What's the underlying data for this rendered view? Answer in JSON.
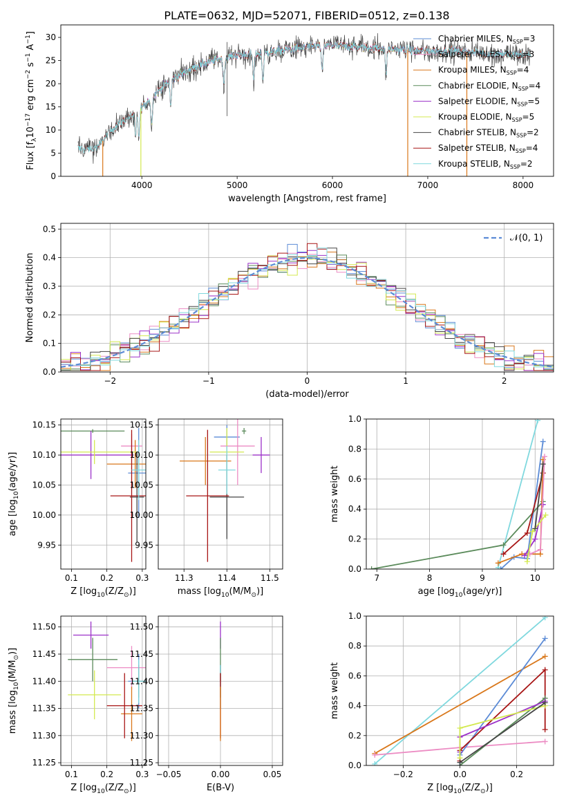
{
  "title": "PLATE=0632, MJD=52071, FIBERID=0512, z=0.138",
  "colors": {
    "chabrier_miles": "#5b8bd6",
    "salpeter_miles": "#ec8bc3",
    "kroupa_miles": "#d9771a",
    "chabrier_elodie": "#5a8a5a",
    "salpeter_elodie": "#9b30c8",
    "kroupa_elodie": "#d3e94f",
    "chabrier_stelib": "#444444",
    "salpeter_stelib": "#a71414",
    "kroupa_stelib": "#7fd8de"
  },
  "legend": [
    {
      "key": "chabrier_miles",
      "text": "Chabrier MILES, N",
      "sub": "SSP",
      "tail": "=3"
    },
    {
      "key": "salpeter_miles",
      "text": "Salpeter MILES, N",
      "sub": "SSP",
      "tail": "=3"
    },
    {
      "key": "kroupa_miles",
      "text": "Kroupa MILES, N",
      "sub": "SSP",
      "tail": "=4"
    },
    {
      "key": "chabrier_elodie",
      "text": "Chabrier ELODIE, N",
      "sub": "SSP",
      "tail": "=4"
    },
    {
      "key": "salpeter_elodie",
      "text": "Salpeter ELODIE, N",
      "sub": "SSP",
      "tail": "=5"
    },
    {
      "key": "kroupa_elodie",
      "text": "Kroupa ELODIE, N",
      "sub": "SSP",
      "tail": "=5"
    },
    {
      "key": "chabrier_stelib",
      "text": "Chabrier STELIB, N",
      "sub": "SSP",
      "tail": "=2"
    },
    {
      "key": "salpeter_stelib",
      "text": "Salpeter STELIB, N",
      "sub": "SSP",
      "tail": "=4"
    },
    {
      "key": "kroupa_stelib",
      "text": "Kroupa STELIB, N",
      "sub": "SSP",
      "tail": "=2"
    }
  ],
  "chart_data": [
    {
      "type": "line",
      "panel": "spectrum",
      "title": "PLATE=0632, MJD=52071, FIBERID=0512, z=0.138",
      "xlabel": "wavelength [Angstrom, rest frame]",
      "ylabel_parts": [
        "Flux [f",
        "λ",
        "10",
        "−17",
        " erg cm",
        "−2",
        " s",
        "−1",
        " A",
        "−1",
        "]"
      ],
      "xlim": [
        3150,
        8320
      ],
      "ylim": [
        0,
        32.7
      ],
      "xticks": [
        "4000",
        "5000",
        "6000",
        "7000",
        "8000"
      ],
      "yticks": [
        "0",
        "5",
        "10",
        "15",
        "20",
        "25",
        "30"
      ],
      "grid": false,
      "legend_position": "top-right",
      "continuum": {
        "x": [
          3330,
          3450,
          3550,
          3650,
          3750,
          3850,
          3950,
          4050,
          4150,
          4300,
          4450,
          4600,
          4800,
          5000,
          5200,
          5400,
          5600,
          5800,
          6000,
          6200,
          6400,
          6600,
          6800,
          7000,
          7200,
          7400,
          7600,
          7800,
          8080
        ],
        "y": [
          6.2,
          5.8,
          6.5,
          9.5,
          11.2,
          12.5,
          13.8,
          16.0,
          18.0,
          20.8,
          22.5,
          24.0,
          25.3,
          26.2,
          26.4,
          27.0,
          27.6,
          28.1,
          28.3,
          28.0,
          27.8,
          27.6,
          27.3,
          27.0,
          27.1,
          26.9,
          26.6,
          26.4,
          26.2
        ]
      },
      "absorption_features": [
        3934,
        3969,
        4102,
        4304,
        4861,
        5175,
        5270,
        5892,
        6563
      ],
      "model_spike_x": [
        3590,
        3990,
        6790,
        7410
      ],
      "series": [
        {
          "key": "chabrier_miles",
          "xrange": [
            4000,
            8000
          ]
        },
        {
          "key": "salpeter_miles",
          "xrange": [
            4000,
            8000
          ]
        },
        {
          "key": "kroupa_miles",
          "xrange": [
            4000,
            8000
          ]
        },
        {
          "key": "chabrier_elodie",
          "xrange": [
            4000,
            6800
          ]
        },
        {
          "key": "salpeter_elodie",
          "xrange": [
            4000,
            6800
          ]
        },
        {
          "key": "kroupa_elodie",
          "xrange": [
            4000,
            6800
          ]
        },
        {
          "key": "chabrier_stelib",
          "xrange": [
            3330,
            8080
          ],
          "note": "observed"
        },
        {
          "key": "salpeter_stelib",
          "xrange": [
            3330,
            8080
          ]
        },
        {
          "key": "kroupa_stelib",
          "xrange": [
            3330,
            8080
          ]
        }
      ]
    },
    {
      "type": "histogram",
      "panel": "residuals",
      "xlabel": "(data-model)/error",
      "ylabel": "Normed distribution",
      "xlim": [
        -2.5,
        2.5
      ],
      "ylim": [
        0,
        0.52
      ],
      "xticks": [
        "−2",
        "−1",
        "0",
        "1",
        "2"
      ],
      "yticks": [
        "0.0",
        "0.1",
        "0.2",
        "0.3",
        "0.4",
        "0.5"
      ],
      "grid": true,
      "bin_width": 0.1,
      "legend": [
        {
          "text": "𝒩(0, 1)",
          "style": "dashed",
          "color": "#5b8bd6"
        }
      ],
      "legend_position": "top-right"
    },
    {
      "type": "scatter",
      "panel": "age-vs-Z",
      "xlabel_parts": [
        "Z [log",
        "10",
        "(Z/Z",
        "⊙",
        ")]"
      ],
      "ylabel_parts": [
        "age  [log",
        "10",
        "(age/yr)]"
      ],
      "xlim": [
        0.07,
        0.31
      ],
      "ylim": [
        9.91,
        10.16
      ],
      "xticks": [
        "0.1",
        "0.2",
        "0.3"
      ],
      "yticks": [
        "9.95",
        "10.00",
        "10.05",
        "10.10",
        "10.15"
      ],
      "grid": true,
      "points": [
        {
          "key": "chabrier_miles",
          "x": 0.29,
          "y": 10.07,
          "xerr": 0.03,
          "yerr": 0.075
        },
        {
          "key": "salpeter_miles",
          "x": 0.27,
          "y": 10.115,
          "xerr": 0.03,
          "yerr": 0.02
        },
        {
          "key": "kroupa_miles",
          "x": 0.28,
          "y": 10.085,
          "xerr": 0.08,
          "yerr": 0.04
        },
        {
          "key": "chabrier_elodie",
          "x": 0.16,
          "y": 10.14,
          "xerr": 0.09,
          "yerr": 0.003
        },
        {
          "key": "salpeter_elodie",
          "x": 0.155,
          "y": 10.1,
          "xerr": 0.12,
          "yerr": 0.04
        },
        {
          "key": "kroupa_elodie",
          "x": 0.165,
          "y": 10.105,
          "xerr": 0.12,
          "yerr": 0.02
        },
        {
          "key": "chabrier_stelib",
          "x": 0.285,
          "y": 10.03,
          "xerr": 0.02,
          "yerr": 0.075
        },
        {
          "key": "salpeter_stelib",
          "x": 0.27,
          "y": 10.032,
          "xerr": 0.06,
          "yerr": 0.11
        },
        {
          "key": "kroupa_stelib",
          "x": 0.29,
          "y": 10.075,
          "xerr": 0.02,
          "yerr": 0.05
        }
      ]
    },
    {
      "type": "scatter",
      "panel": "age-vs-mass",
      "xlabel_parts": [
        "mass [log",
        "10",
        "(M/M",
        "⊙",
        ")]"
      ],
      "xlim": [
        11.24,
        11.53
      ],
      "ylim": [
        9.91,
        10.16
      ],
      "xticks": [
        "11.3",
        "11.4",
        "11.5"
      ],
      "yticks": [
        "9.95",
        "10.00",
        "10.05",
        "10.10",
        "10.15"
      ],
      "grid": true,
      "points": [
        {
          "key": "chabrier_miles",
          "x": 11.4,
          "y": 10.13,
          "xerr": 0.03,
          "yerr": 0.02
        },
        {
          "key": "salpeter_miles",
          "x": 11.425,
          "y": 10.115,
          "xerr": 0.04,
          "yerr": 0.065
        },
        {
          "key": "kroupa_miles",
          "x": 11.35,
          "y": 10.09,
          "xerr": 0.06,
          "yerr": 0.04
        },
        {
          "key": "chabrier_elodie",
          "x": 11.44,
          "y": 10.14,
          "xerr": 0.005,
          "yerr": 0.005
        },
        {
          "key": "salpeter_elodie",
          "x": 11.48,
          "y": 10.1,
          "xerr": 0.02,
          "yerr": 0.03
        },
        {
          "key": "kroupa_elodie",
          "x": 11.4,
          "y": 10.105,
          "xerr": 0.04,
          "yerr": 0.04
        },
        {
          "key": "chabrier_stelib",
          "x": 11.4,
          "y": 10.03,
          "xerr": 0.04,
          "yerr": 0.07
        },
        {
          "key": "salpeter_stelib",
          "x": 11.355,
          "y": 10.032,
          "xerr": 0.05,
          "yerr": 0.11
        },
        {
          "key": "kroupa_stelib",
          "x": 11.4,
          "y": 10.075,
          "xerr": 0.02,
          "yerr": 0.04
        }
      ]
    },
    {
      "type": "line",
      "panel": "mass-weight-vs-age",
      "xlabel_parts": [
        "age  [log",
        "10",
        "(age/yr)]"
      ],
      "ylabel": "mass weight",
      "xlim": [
        6.8,
        10.35
      ],
      "ylim": [
        0,
        1
      ],
      "xticks": [
        "7",
        "8",
        "9",
        "10"
      ],
      "yticks": [
        "0.0",
        "0.2",
        "0.4",
        "0.6",
        "0.8",
        "1.0"
      ],
      "grid": true,
      "series": [
        {
          "key": "kroupa_stelib",
          "x": [
            9.3,
            10.05
          ],
          "y": [
            0.01,
            0.99
          ]
        },
        {
          "key": "chabrier_miles",
          "x": [
            9.35,
            9.6,
            9.85,
            10.15
          ],
          "y": [
            0.0,
            0.08,
            0.07,
            0.85
          ]
        },
        {
          "key": "chabrier_elodie",
          "x": [
            6.9,
            9.4,
            10.15
          ],
          "y": [
            0.0,
            0.16,
            0.45
          ]
        },
        {
          "key": "salpeter_stelib",
          "x": [
            9.4,
            9.85,
            10.15
          ],
          "y": [
            0.1,
            0.24,
            0.64
          ]
        },
        {
          "key": "kroupa_miles",
          "x": [
            9.3,
            9.75,
            10.1,
            10.15
          ],
          "y": [
            0.04,
            0.1,
            0.1,
            0.73
          ]
        },
        {
          "key": "salpeter_elodie",
          "x": [
            9.8,
            10.0,
            10.15
          ],
          "y": [
            0.09,
            0.2,
            0.43
          ]
        },
        {
          "key": "salpeter_miles",
          "x": [
            9.9,
            10.1,
            10.18
          ],
          "y": [
            0.1,
            0.13,
            0.75
          ]
        },
        {
          "key": "kroupa_elodie",
          "x": [
            9.85,
            9.95,
            10.2
          ],
          "y": [
            0.05,
            0.25,
            0.36
          ]
        },
        {
          "key": "chabrier_stelib",
          "x": [
            10.0,
            10.15
          ],
          "y": [
            0.27,
            0.7
          ]
        }
      ]
    },
    {
      "type": "scatter",
      "panel": "mass-vs-Z",
      "xlabel_parts": [
        "Z [log",
        "10",
        "(Z/Z",
        "⊙",
        ")]"
      ],
      "ylabel_parts": [
        "mass [log",
        "10",
        "(M/M",
        "⊙",
        ")]"
      ],
      "xlim": [
        0.07,
        0.31
      ],
      "ylim": [
        11.245,
        11.52
      ],
      "xticks": [
        "0.1",
        "0.2",
        "0.3"
      ],
      "yticks": [
        "11.25",
        "11.30",
        "11.35",
        "11.40",
        "11.45",
        "11.50"
      ],
      "grid": true,
      "points": [
        {
          "key": "chabrier_miles",
          "x": 0.29,
          "y": 11.4,
          "xerr": 0.03,
          "yerr": 0.05
        },
        {
          "key": "salpeter_miles",
          "x": 0.27,
          "y": 11.425,
          "xerr": 0.07,
          "yerr": 0.04
        },
        {
          "key": "kroupa_miles",
          "x": 0.27,
          "y": 11.34,
          "xerr": 0.03,
          "yerr": 0.05
        },
        {
          "key": "chabrier_elodie",
          "x": 0.16,
          "y": 11.44,
          "xerr": 0.07,
          "yerr": 0.04
        },
        {
          "key": "salpeter_elodie",
          "x": 0.155,
          "y": 11.485,
          "xerr": 0.05,
          "yerr": 0.025
        },
        {
          "key": "kroupa_elodie",
          "x": 0.165,
          "y": 11.375,
          "xerr": 0.075,
          "yerr": 0.045
        },
        {
          "key": "chabrier_stelib",
          "x": 0.29,
          "y": 11.4,
          "xerr": 0.02,
          "yerr": 0.03
        },
        {
          "key": "salpeter_stelib",
          "x": 0.25,
          "y": 11.355,
          "xerr": 0.05,
          "yerr": 0.06
        },
        {
          "key": "kroupa_stelib",
          "x": 0.29,
          "y": 11.4,
          "xerr": 0.02,
          "yerr": 0.04
        }
      ]
    },
    {
      "type": "scatter",
      "panel": "mass-vs-ebv",
      "xlabel": "E(B-V)",
      "xlim": [
        -0.06,
        0.06
      ],
      "ylim": [
        11.245,
        11.52
      ],
      "xticks": [
        "−0.05",
        "0.00",
        "0.05"
      ],
      "yticks": [
        "11.25",
        "11.30",
        "11.35",
        "11.40",
        "11.45",
        "11.50"
      ],
      "grid": true,
      "points": [
        {
          "key": "salpeter_elodie",
          "x": 0.0,
          "y": 11.485,
          "xerr": 0,
          "yerr": 0.025
        },
        {
          "key": "chabrier_elodie",
          "x": 0.0,
          "y": 11.44,
          "xerr": 0,
          "yerr": 0.04
        },
        {
          "key": "chabrier_stelib",
          "x": 0.0,
          "y": 11.4,
          "xerr": 0,
          "yerr": 0.03
        },
        {
          "key": "kroupa_stelib",
          "x": 0.0,
          "y": 11.39,
          "xerr": 0,
          "yerr": 0.04
        },
        {
          "key": "salpeter_stelib",
          "x": 0.0,
          "y": 11.355,
          "xerr": 0,
          "yerr": 0.06
        },
        {
          "key": "kroupa_miles",
          "x": 0.0,
          "y": 11.34,
          "xerr": 0,
          "yerr": 0.05
        }
      ]
    },
    {
      "type": "line",
      "panel": "mass-weight-vs-Z",
      "xlabel_parts": [
        "Z [log",
        "10",
        "(Z/Z",
        "⊙",
        ")]"
      ],
      "ylabel": "mass weight",
      "xlim": [
        -0.33,
        0.33
      ],
      "ylim": [
        0,
        1
      ],
      "xticks": [
        "−0.2",
        "0.0",
        "0.2"
      ],
      "yticks": [
        "0.0",
        "0.2",
        "0.4",
        "0.6",
        "0.8",
        "1.0"
      ],
      "grid": true,
      "series": [
        {
          "key": "kroupa_stelib",
          "x": [
            -0.3,
            0.3
          ],
          "y": [
            0.01,
            0.99
          ]
        },
        {
          "key": "kroupa_miles",
          "x": [
            -0.3,
            0.3
          ],
          "y": [
            0.08,
            0.73
          ]
        },
        {
          "key": "salpeter_miles",
          "x": [
            -0.3,
            0.0,
            0.3
          ],
          "y": [
            0.07,
            0.12,
            0.16
          ]
        },
        {
          "key": "chabrier_miles",
          "x": [
            0.0,
            0.0,
            0.3
          ],
          "y": [
            0.0,
            0.07,
            0.85
          ]
        },
        {
          "key": "salpeter_stelib",
          "x": [
            0.0,
            0.0,
            0.3,
            0.3
          ],
          "y": [
            0.03,
            0.1,
            0.64,
            0.24
          ]
        },
        {
          "key": "chabrier_elodie",
          "x": [
            0.0,
            0.3
          ],
          "y": [
            0.0,
            0.45
          ]
        },
        {
          "key": "salpeter_elodie",
          "x": [
            0.0,
            0.0,
            0.3
          ],
          "y": [
            0.09,
            0.19,
            0.43
          ]
        },
        {
          "key": "kroupa_elodie",
          "x": [
            0.0,
            0.0,
            0.3
          ],
          "y": [
            0.05,
            0.25,
            0.4
          ]
        },
        {
          "key": "chabrier_stelib",
          "x": [
            0.0,
            0.3
          ],
          "y": [
            0.02,
            0.42
          ]
        }
      ]
    }
  ]
}
